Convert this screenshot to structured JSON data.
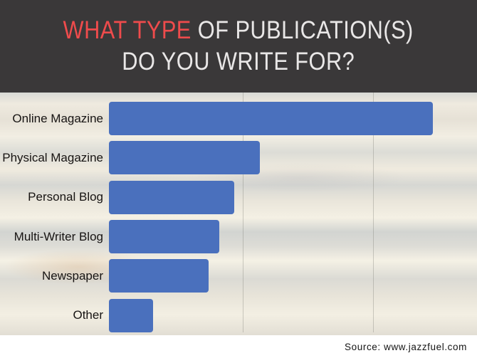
{
  "header": {
    "title_line1_highlight": "WHAT TYPE",
    "title_line1_rest": " OF PUBLICATION(S)",
    "title_line2": "DO YOU WRITE FOR?",
    "background_color": "#3a3839",
    "highlight_color": "#ef4b4c",
    "text_color": "#e9e7e7"
  },
  "chart_data": {
    "type": "bar",
    "orientation": "horizontal",
    "title": "WHAT TYPE OF PUBLICATION(S) DO YOU WRITE FOR?",
    "categories": [
      "Online Magazine",
      "Physical Magazine",
      "Personal Blog",
      "Multi-Writer Blog",
      "Newspaper",
      "Other"
    ],
    "values": [
      88,
      41,
      34,
      30,
      27,
      12
    ],
    "value_scale": "relative bar length, percent of plot width (no numeric axis labels shown in chart)",
    "bar_color": "#4a70bd",
    "label_color": "#171413",
    "grid": true,
    "gridlines_pct": [
      36.4,
      71.8
    ],
    "axis_tick_labels_visible": false,
    "legend": false,
    "background": "blurred beige photo"
  },
  "footer": {
    "source_text": "Source: www.jazzfuel.com",
    "background_color": "#ffffff",
    "text_color": "#141414"
  }
}
